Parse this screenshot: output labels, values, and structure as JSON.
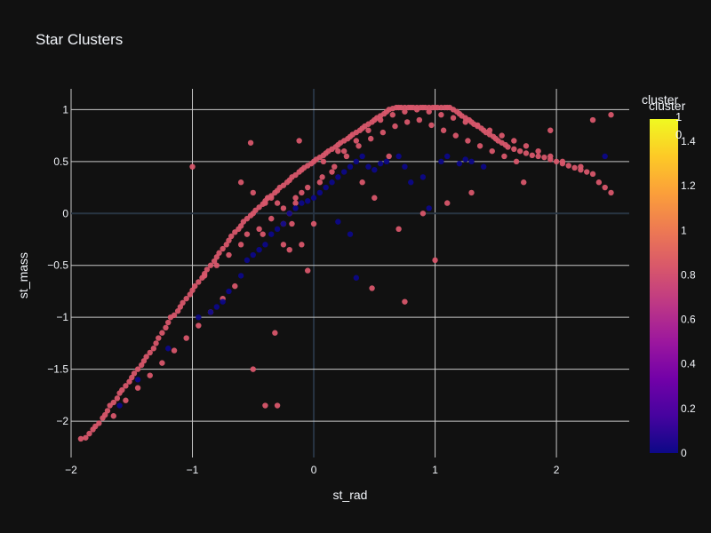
{
  "chart_data": {
    "type": "scatter",
    "title": "Star Clusters",
    "xlabel": "st_rad",
    "ylabel": "st_mass",
    "xlim": [
      -2.0,
      2.6
    ],
    "ylim": [
      -2.35,
      1.2
    ],
    "x_ticks": [
      -2,
      -1,
      0,
      1,
      2
    ],
    "x_tick_labels": [
      "−2",
      "−1",
      "0",
      "1",
      "2"
    ],
    "y_ticks": [
      -2,
      -1.5,
      -1,
      -0.5,
      0,
      0.5,
      1
    ],
    "y_tick_labels": [
      "−2",
      "−1.5",
      "−1",
      "−0.5",
      "0",
      "0.5",
      "1"
    ],
    "grid": true,
    "colorbar": {
      "title": "cluster",
      "range": [
        0,
        1.5
      ],
      "ticks": [
        0,
        0.2,
        0.4,
        0.6,
        0.8,
        1,
        1.2,
        1.4
      ],
      "tick_labels": [
        "0",
        "0.2",
        "0.4",
        "0.6",
        "0.8",
        "1",
        "1.2",
        "1.4"
      ],
      "colorscale": [
        "#0d0887",
        "#46039f",
        "#7201a8",
        "#9c179e",
        "#bd3786",
        "#d8576b",
        "#ed7953",
        "#fb9f3a",
        "#fdca26",
        "#f0f921"
      ]
    },
    "legend_overlay": {
      "title": "cluster",
      "ticks": [
        "1",
        "0"
      ]
    },
    "series": [
      {
        "cluster": 1,
        "color": "#d8576b",
        "x": [
          -1.92,
          -1.88,
          -1.85,
          -1.82,
          -1.8,
          -1.77,
          -1.74,
          -1.72,
          -1.7,
          -1.68,
          -1.65,
          -1.62,
          -1.6,
          -1.58,
          -1.55,
          -1.52,
          -1.5,
          -1.48,
          -1.45,
          -1.42,
          -1.4,
          -1.38,
          -1.35,
          -1.32,
          -1.3,
          -1.28,
          -1.25,
          -1.22,
          -1.2,
          -1.18,
          -1.15,
          -1.12,
          -1.1,
          -1.08,
          -1.05,
          -1.02,
          -1.0,
          -0.98,
          -0.95,
          -0.92,
          -0.9,
          -0.88,
          -0.85,
          -0.82,
          -0.8,
          -0.78,
          -0.75,
          -0.72,
          -0.7,
          -0.68,
          -0.65,
          -0.62,
          -0.6,
          -0.58,
          -0.55,
          -0.52,
          -0.5,
          -0.48,
          -0.45,
          -0.42,
          -0.4,
          -0.38,
          -0.35,
          -0.32,
          -0.3,
          -0.28,
          -0.25,
          -0.22,
          -0.2,
          -0.18,
          -0.15,
          -0.12,
          -0.1,
          -0.08,
          -0.05,
          -0.02,
          0.0,
          0.02,
          0.05,
          0.08,
          0.1,
          0.12,
          0.15,
          0.18,
          0.2,
          0.22,
          0.25,
          0.28,
          0.3,
          0.32,
          0.35,
          0.38,
          0.4,
          0.42,
          0.45,
          0.48,
          0.5,
          0.52,
          0.55,
          0.58,
          0.6,
          0.62,
          0.65,
          0.68,
          0.7,
          0.72,
          0.75,
          0.78,
          0.8,
          0.82,
          0.85,
          0.88,
          0.9,
          0.92,
          0.95,
          0.98,
          1.0,
          1.02,
          1.05,
          1.08,
          1.1,
          1.12,
          1.15,
          1.18,
          1.2,
          1.22,
          1.25,
          1.28,
          1.3,
          1.32,
          1.35,
          1.38,
          1.4,
          1.42,
          1.45,
          1.48,
          1.5,
          1.52,
          1.55,
          1.58,
          1.6,
          1.65,
          1.7,
          1.75,
          1.8,
          1.85,
          1.9,
          1.95,
          2.0,
          2.05,
          2.1,
          2.15,
          2.2,
          2.25,
          2.3,
          2.35,
          2.4,
          2.45,
          -0.35,
          -0.4,
          -0.5,
          -0.6,
          -0.3,
          -0.25,
          -0.2,
          -0.15,
          -0.1,
          0.05,
          0.15,
          0.25,
          0.35,
          0.45,
          0.55,
          0.65,
          0.75,
          0.85,
          0.95,
          1.05,
          1.15,
          1.25,
          1.35,
          1.45,
          1.55,
          1.65,
          1.75,
          1.85,
          1.95,
          2.05,
          -1.0,
          -0.9,
          -0.8,
          -0.7,
          -0.6,
          -0.55,
          -0.45,
          -0.35,
          -0.25,
          -0.15,
          -0.05,
          0.07,
          0.17,
          0.27,
          0.37,
          0.47,
          0.57,
          0.67,
          0.77,
          0.87,
          0.97,
          1.07,
          1.17,
          1.27,
          1.37,
          1.47,
          1.57,
          1.67,
          2.2,
          2.3,
          2.45,
          1.95,
          1.73,
          1.3,
          1.1,
          0.9,
          0.7,
          0.5,
          0.4,
          0.2,
          0.0,
          -0.1,
          -0.2,
          -0.3,
          -0.4,
          -0.5,
          -0.32,
          -0.38,
          -0.52,
          -0.12,
          0.08,
          0.48,
          0.75,
          1.0,
          0.62,
          -0.42,
          -0.18,
          -0.25,
          -0.05,
          -0.65,
          -0.75,
          -0.85,
          -0.95,
          -1.05,
          -1.15,
          -1.25,
          -1.35,
          -1.45,
          -1.55,
          -1.65
        ],
        "y": [
          -2.17,
          -2.16,
          -2.12,
          -2.08,
          -2.05,
          -2.02,
          -1.97,
          -1.94,
          -1.9,
          -1.85,
          -1.82,
          -1.78,
          -1.73,
          -1.7,
          -1.66,
          -1.62,
          -1.58,
          -1.54,
          -1.5,
          -1.46,
          -1.42,
          -1.38,
          -1.34,
          -1.3,
          -1.25,
          -1.2,
          -1.15,
          -1.1,
          -1.05,
          -1.0,
          -0.98,
          -0.94,
          -0.9,
          -0.86,
          -0.82,
          -0.78,
          -0.74,
          -0.7,
          -0.66,
          -0.62,
          -0.58,
          -0.54,
          -0.5,
          -0.46,
          -0.42,
          -0.38,
          -0.34,
          -0.3,
          -0.26,
          -0.22,
          -0.18,
          -0.15,
          -0.12,
          -0.08,
          -0.05,
          -0.02,
          0.0,
          0.03,
          0.06,
          0.09,
          0.12,
          0.15,
          0.17,
          0.2,
          0.22,
          0.25,
          0.27,
          0.3,
          0.32,
          0.35,
          0.37,
          0.4,
          0.42,
          0.44,
          0.46,
          0.48,
          0.5,
          0.52,
          0.54,
          0.56,
          0.58,
          0.6,
          0.62,
          0.64,
          0.66,
          0.68,
          0.7,
          0.72,
          0.74,
          0.76,
          0.78,
          0.8,
          0.82,
          0.84,
          0.86,
          0.88,
          0.9,
          0.92,
          0.94,
          0.96,
          0.98,
          1.0,
          1.01,
          1.02,
          1.02,
          1.02,
          1.02,
          1.02,
          1.02,
          1.02,
          1.02,
          1.02,
          1.02,
          1.02,
          1.02,
          1.02,
          1.02,
          1.02,
          1.02,
          1.02,
          1.02,
          1.02,
          1.0,
          0.98,
          0.96,
          0.94,
          0.92,
          0.9,
          0.88,
          0.86,
          0.84,
          0.82,
          0.8,
          0.78,
          0.76,
          0.74,
          0.72,
          0.7,
          0.68,
          0.66,
          0.64,
          0.62,
          0.6,
          0.58,
          0.56,
          0.55,
          0.54,
          0.52,
          0.5,
          0.48,
          0.46,
          0.44,
          0.42,
          0.4,
          0.38,
          0.3,
          0.25,
          0.2,
          0.15,
          0.1,
          0.2,
          0.3,
          0.1,
          -0.1,
          0.0,
          0.1,
          0.2,
          0.3,
          0.4,
          0.6,
          0.7,
          0.8,
          0.9,
          0.95,
          0.98,
          1.0,
          0.98,
          0.95,
          0.92,
          0.88,
          0.85,
          0.8,
          0.75,
          0.7,
          0.65,
          0.6,
          0.55,
          0.5,
          0.45,
          -0.6,
          -0.5,
          -0.4,
          -0.3,
          -0.2,
          -0.15,
          -0.05,
          0.05,
          0.15,
          0.25,
          0.35,
          0.45,
          0.55,
          0.65,
          0.72,
          0.78,
          0.84,
          0.88,
          0.9,
          0.85,
          0.8,
          0.75,
          0.7,
          0.65,
          0.6,
          0.55,
          0.5,
          0.45,
          0.9,
          0.95,
          0.8,
          0.3,
          0.2,
          0.1,
          0.0,
          -0.15,
          0.15,
          0.3,
          0.6,
          -0.1,
          -0.3,
          -0.35,
          -1.85,
          -1.85,
          -1.5,
          -1.15,
          0.15,
          0.68,
          0.7,
          0.5,
          -0.72,
          -0.85,
          -0.45,
          0.55,
          -0.2,
          -0.1,
          -0.3,
          -0.55,
          -0.7,
          -0.82,
          -0.95,
          -1.08,
          -1.2,
          -1.32,
          -1.44,
          -1.56,
          -1.68,
          -1.8,
          -1.95
        ]
      },
      {
        "cluster": 0,
        "color": "#0d0887",
        "x": [
          -1.6,
          -1.45,
          -1.2,
          -0.95,
          -0.85,
          -0.8,
          -0.75,
          -0.7,
          -0.6,
          -0.55,
          -0.5,
          -0.45,
          -0.4,
          -0.35,
          -0.3,
          -0.25,
          -0.2,
          -0.15,
          -0.1,
          -0.05,
          0.0,
          0.05,
          0.1,
          0.15,
          0.2,
          0.25,
          0.3,
          0.35,
          0.4,
          0.45,
          0.5,
          0.55,
          0.6,
          0.7,
          0.75,
          0.8,
          0.9,
          0.95,
          1.05,
          1.1,
          1.2,
          1.25,
          1.3,
          1.4,
          0.35,
          0.3,
          0.2,
          2.4
        ],
        "y": [
          -1.85,
          -1.6,
          -1.3,
          -1.0,
          -0.95,
          -0.9,
          -0.85,
          -0.75,
          -0.6,
          -0.45,
          -0.4,
          -0.35,
          -0.3,
          -0.2,
          -0.15,
          -0.1,
          0.0,
          0.05,
          0.1,
          0.12,
          0.15,
          0.2,
          0.25,
          0.3,
          0.35,
          0.4,
          0.45,
          0.5,
          0.55,
          0.45,
          0.42,
          0.48,
          0.5,
          0.55,
          0.45,
          0.3,
          0.35,
          0.05,
          0.5,
          0.55,
          0.48,
          0.52,
          0.5,
          0.45,
          -0.62,
          -0.2,
          -0.08,
          0.55
        ]
      }
    ]
  }
}
